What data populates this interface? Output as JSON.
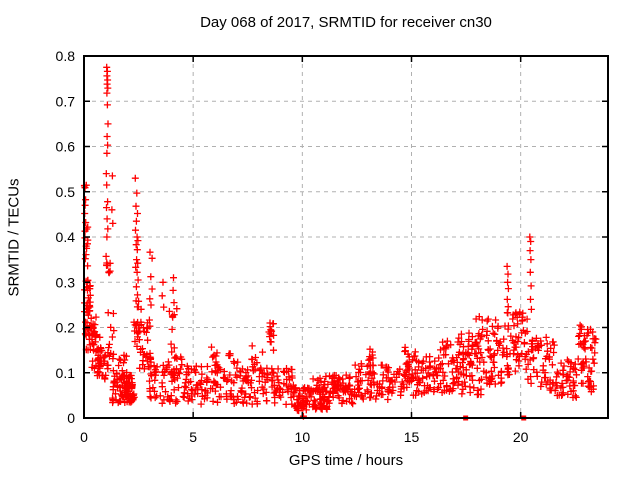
{
  "window": {
    "background": "#ffffff"
  },
  "chart_data": {
    "type": "scatter",
    "title": "Day 068 of 2017, SRMTID for receiver cn30",
    "xlabel": "GPS time / hours",
    "ylabel": "SRMTID / TECUs",
    "xlim": [
      0,
      24
    ],
    "ylim": [
      0,
      0.8
    ],
    "xticks": [
      {
        "value": 0,
        "label": "0"
      },
      {
        "value": 5,
        "label": "5"
      },
      {
        "value": 10,
        "label": "10"
      },
      {
        "value": 15,
        "label": "15"
      },
      {
        "value": 20,
        "label": "20"
      }
    ],
    "yticks": [
      {
        "value": 0,
        "label": "0"
      },
      {
        "value": 0.1,
        "label": "0.1"
      },
      {
        "value": 0.2,
        "label": "0.2"
      },
      {
        "value": 0.3,
        "label": "0.3"
      },
      {
        "value": 0.4,
        "label": "0.4"
      },
      {
        "value": 0.5,
        "label": "0.5"
      },
      {
        "value": 0.6,
        "label": "0.6"
      },
      {
        "value": 0.7,
        "label": "0.7"
      },
      {
        "value": 0.8,
        "label": "0.8"
      }
    ],
    "grid": true,
    "legend": "none",
    "marker": {
      "shape": "plus",
      "color": "#ff0000",
      "size": 7
    },
    "axis_marker": {
      "shape": "filled-square",
      "color": "#ff0000",
      "size": 5
    },
    "seed": 68,
    "clusters": [
      [
        0.02,
        0.22,
        0.3,
        0.515,
        14
      ],
      [
        0.02,
        0.3,
        0.235,
        0.305,
        26
      ],
      [
        0.05,
        0.55,
        0.15,
        0.235,
        30
      ],
      [
        0.25,
        0.8,
        0.105,
        0.185,
        28
      ],
      [
        0.55,
        1.0,
        0.085,
        0.15,
        22
      ],
      [
        1.0,
        1.2,
        0.32,
        0.36,
        10
      ],
      [
        1.05,
        1.4,
        0.1,
        0.24,
        16
      ],
      [
        1.3,
        2.3,
        0.03,
        0.095,
        85
      ],
      [
        1.45,
        2.25,
        0.09,
        0.14,
        12
      ],
      [
        2.28,
        2.62,
        0.15,
        0.26,
        22
      ],
      [
        2.55,
        3.05,
        0.105,
        0.22,
        26
      ],
      [
        2.9,
        3.25,
        0.23,
        0.38,
        6
      ],
      [
        3.0,
        4.6,
        0.03,
        0.135,
        70
      ],
      [
        3.9,
        4.3,
        0.14,
        0.26,
        9
      ],
      [
        4.6,
        8.45,
        0.03,
        0.115,
        150
      ],
      [
        5.6,
        6.15,
        0.115,
        0.16,
        9
      ],
      [
        6.6,
        7.1,
        0.11,
        0.15,
        7
      ],
      [
        7.5,
        8.2,
        0.11,
        0.165,
        9
      ],
      [
        8.45,
        8.7,
        0.14,
        0.21,
        9
      ],
      [
        8.6,
        9.6,
        0.03,
        0.11,
        48
      ],
      [
        9.6,
        11.3,
        0.015,
        0.068,
        95
      ],
      [
        10.4,
        11.6,
        0.055,
        0.095,
        20
      ],
      [
        11.3,
        12.4,
        0.03,
        0.095,
        55
      ],
      [
        12.4,
        14.0,
        0.04,
        0.12,
        70
      ],
      [
        12.9,
        13.35,
        0.115,
        0.148,
        10
      ],
      [
        14.0,
        15.5,
        0.05,
        0.13,
        62
      ],
      [
        14.6,
        15.2,
        0.13,
        0.172,
        8
      ],
      [
        15.5,
        17.0,
        0.055,
        0.14,
        62
      ],
      [
        16.3,
        16.95,
        0.135,
        0.18,
        8
      ],
      [
        17.0,
        19.3,
        0.07,
        0.19,
        115
      ],
      [
        17.6,
        19.3,
        0.19,
        0.225,
        12
      ],
      [
        17.3,
        18.2,
        0.048,
        0.075,
        10
      ],
      [
        19.35,
        20.3,
        0.095,
        0.25,
        55
      ],
      [
        20.3,
        21.6,
        0.06,
        0.18,
        58
      ],
      [
        21.6,
        22.6,
        0.045,
        0.13,
        45
      ],
      [
        22.6,
        23.05,
        0.07,
        0.205,
        26
      ],
      [
        23.05,
        23.45,
        0.05,
        0.2,
        26
      ]
    ],
    "points": [
      [
        1.04,
        0.775
      ],
      [
        1.07,
        0.766
      ],
      [
        1.05,
        0.756
      ],
      [
        1.08,
        0.747
      ],
      [
        1.06,
        0.738
      ],
      [
        1.09,
        0.729
      ],
      [
        1.05,
        0.718
      ],
      [
        1.07,
        0.692
      ],
      [
        1.1,
        0.65
      ],
      [
        1.06,
        0.622
      ],
      [
        1.08,
        0.603
      ],
      [
        1.05,
        0.585
      ],
      [
        1.02,
        0.54
      ],
      [
        1.04,
        0.515
      ],
      [
        1.08,
        0.478
      ],
      [
        1.03,
        0.465
      ],
      [
        1.06,
        0.44
      ],
      [
        1.09,
        0.418
      ],
      [
        1.05,
        0.4
      ],
      [
        1.3,
        0.535
      ],
      [
        1.28,
        0.46
      ],
      [
        1.32,
        0.43
      ],
      [
        0.02,
        0.513
      ],
      [
        0.05,
        0.47
      ],
      [
        0.03,
        0.452
      ],
      [
        0.08,
        0.432
      ],
      [
        0.04,
        0.398
      ],
      [
        0.1,
        0.38
      ],
      [
        0.06,
        0.352
      ],
      [
        2.35,
        0.53
      ],
      [
        2.42,
        0.497
      ],
      [
        2.38,
        0.468
      ],
      [
        2.45,
        0.452
      ],
      [
        2.4,
        0.435
      ],
      [
        2.36,
        0.415
      ],
      [
        2.43,
        0.4
      ],
      [
        2.47,
        0.392
      ],
      [
        2.39,
        0.383
      ],
      [
        2.44,
        0.372
      ],
      [
        2.41,
        0.35
      ],
      [
        2.46,
        0.342
      ],
      [
        2.37,
        0.333
      ],
      [
        2.43,
        0.322
      ],
      [
        2.48,
        0.305
      ],
      [
        2.4,
        0.29
      ],
      [
        2.45,
        0.272
      ],
      [
        2.5,
        0.258
      ],
      [
        3.62,
        0.3
      ],
      [
        3.58,
        0.27
      ],
      [
        3.65,
        0.245
      ],
      [
        4.1,
        0.31
      ],
      [
        4.08,
        0.282
      ],
      [
        4.12,
        0.255
      ],
      [
        8.52,
        0.21
      ],
      [
        8.55,
        0.195
      ],
      [
        8.5,
        0.18
      ],
      [
        8.57,
        0.168
      ],
      [
        13.1,
        0.152
      ],
      [
        19.38,
        0.335
      ],
      [
        19.42,
        0.318
      ],
      [
        19.4,
        0.3
      ],
      [
        19.44,
        0.286
      ],
      [
        19.39,
        0.262
      ],
      [
        19.43,
        0.246
      ],
      [
        19.41,
        0.232
      ],
      [
        20.42,
        0.4
      ],
      [
        20.46,
        0.39
      ],
      [
        20.43,
        0.37
      ],
      [
        20.47,
        0.35
      ],
      [
        20.44,
        0.322
      ],
      [
        20.48,
        0.292
      ],
      [
        20.45,
        0.262
      ],
      [
        20.49,
        0.24
      ],
      [
        22.72,
        0.205
      ],
      [
        22.78,
        0.196
      ],
      [
        23.2,
        0.196
      ],
      [
        23.3,
        0.19
      ],
      [
        10.05,
        0.004
      ]
    ],
    "axis_points": [
      [
        17.48,
        0
      ],
      [
        20.14,
        0
      ]
    ]
  },
  "colors": {
    "marker": "#ff0000",
    "grid": "#b0b0b0",
    "frame": "#000000",
    "text": "#000000"
  }
}
